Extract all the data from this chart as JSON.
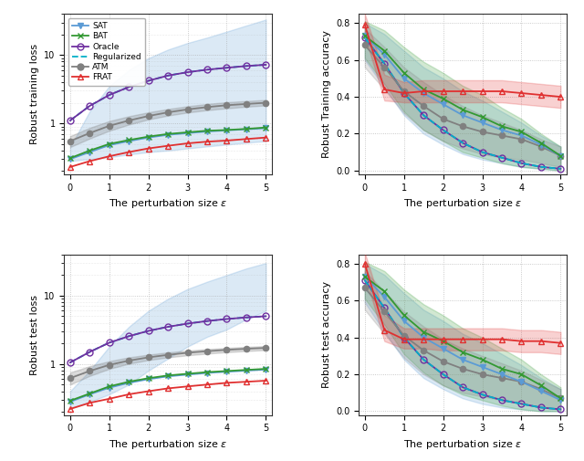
{
  "x_dense": [
    0,
    0.5,
    1.0,
    1.5,
    2.0,
    2.5,
    3.0,
    3.5,
    4.0,
    4.5,
    5.0
  ],
  "colors": {
    "SAT": "#5B9BD5",
    "BAT": "#339933",
    "Oracle": "#7030A0",
    "Regularized": "#00B0C8",
    "ATM": "#808080",
    "FRAT": "#E03030"
  },
  "train_loss": {
    "SAT": [
      0.3,
      0.38,
      0.48,
      0.55,
      0.62,
      0.68,
      0.72,
      0.76,
      0.79,
      0.82,
      0.85
    ],
    "BAT": [
      0.31,
      0.4,
      0.5,
      0.57,
      0.64,
      0.7,
      0.74,
      0.78,
      0.8,
      0.83,
      0.87
    ],
    "Oracle": [
      1.1,
      1.8,
      2.6,
      3.4,
      4.2,
      5.0,
      5.6,
      6.1,
      6.5,
      6.9,
      7.2
    ],
    "Regularized": [
      1.1,
      1.8,
      2.6,
      3.4,
      4.2,
      5.0,
      5.6,
      6.1,
      6.5,
      6.9,
      7.2
    ],
    "ATM": [
      0.55,
      0.72,
      0.92,
      1.1,
      1.28,
      1.45,
      1.6,
      1.73,
      1.84,
      1.92,
      2.0
    ],
    "FRAT": [
      0.23,
      0.28,
      0.33,
      0.38,
      0.43,
      0.47,
      0.51,
      0.54,
      0.56,
      0.59,
      0.62
    ]
  },
  "train_loss_lo": [
    0.28,
    0.3,
    0.32,
    0.35,
    0.38,
    0.4,
    0.43,
    0.46,
    0.49,
    0.52,
    0.55
  ],
  "train_loss_hi": [
    0.45,
    1.5,
    3.5,
    6.0,
    9.0,
    12.0,
    15.0,
    18.0,
    22.0,
    27.0,
    33.0
  ],
  "train_loss_atm_lo": [
    0.45,
    0.6,
    0.78,
    0.96,
    1.14,
    1.3,
    1.44,
    1.56,
    1.66,
    1.75,
    1.83
  ],
  "train_loss_atm_hi": [
    0.65,
    0.86,
    1.08,
    1.27,
    1.45,
    1.62,
    1.78,
    1.92,
    2.04,
    2.12,
    2.2
  ],
  "test_loss": {
    "SAT": [
      0.28,
      0.36,
      0.45,
      0.53,
      0.6,
      0.66,
      0.7,
      0.74,
      0.77,
      0.8,
      0.83
    ],
    "BAT": [
      0.29,
      0.37,
      0.47,
      0.55,
      0.62,
      0.68,
      0.72,
      0.76,
      0.79,
      0.82,
      0.85
    ],
    "Oracle": [
      1.05,
      1.5,
      2.05,
      2.55,
      3.05,
      3.5,
      3.9,
      4.25,
      4.55,
      4.8,
      5.0
    ],
    "Regularized": [
      1.05,
      1.5,
      2.05,
      2.55,
      3.05,
      3.5,
      3.9,
      4.25,
      4.55,
      4.8,
      5.0
    ],
    "ATM": [
      0.62,
      0.79,
      0.97,
      1.12,
      1.25,
      1.36,
      1.46,
      1.54,
      1.61,
      1.67,
      1.72
    ],
    "FRAT": [
      0.22,
      0.27,
      0.31,
      0.36,
      0.4,
      0.44,
      0.47,
      0.5,
      0.53,
      0.55,
      0.57
    ]
  },
  "test_loss_lo": [
    0.22,
    0.28,
    0.36,
    0.5,
    0.8,
    1.2,
    1.8,
    2.5,
    3.2,
    4.5,
    6.0
  ],
  "test_loss_hi": [
    0.4,
    0.8,
    1.8,
    3.5,
    6.0,
    9.0,
    12.5,
    16.0,
    20.0,
    25.0,
    30.0
  ],
  "test_loss_atm_lo": [
    0.5,
    0.67,
    0.85,
    1.01,
    1.14,
    1.25,
    1.34,
    1.42,
    1.49,
    1.55,
    1.6
  ],
  "test_loss_atm_hi": [
    0.75,
    0.93,
    1.1,
    1.25,
    1.37,
    1.48,
    1.57,
    1.65,
    1.72,
    1.78,
    1.83
  ],
  "train_acc": {
    "SAT": [
      0.73,
      0.63,
      0.5,
      0.42,
      0.36,
      0.3,
      0.26,
      0.22,
      0.19,
      0.14,
      0.08
    ],
    "BAT": [
      0.73,
      0.65,
      0.53,
      0.44,
      0.39,
      0.33,
      0.29,
      0.24,
      0.21,
      0.15,
      0.08
    ],
    "Oracle": [
      0.72,
      0.58,
      0.42,
      0.3,
      0.22,
      0.15,
      0.1,
      0.07,
      0.04,
      0.02,
      0.01
    ],
    "Regularized": [
      0.72,
      0.58,
      0.42,
      0.3,
      0.22,
      0.15,
      0.1,
      0.07,
      0.04,
      0.02,
      0.01
    ],
    "ATM": [
      0.68,
      0.56,
      0.43,
      0.35,
      0.28,
      0.24,
      0.21,
      0.19,
      0.17,
      0.13,
      0.08
    ],
    "FRAT": [
      0.79,
      0.44,
      0.42,
      0.43,
      0.43,
      0.43,
      0.43,
      0.43,
      0.42,
      0.41,
      0.4
    ]
  },
  "train_acc_sat_lo": [
    0.6,
    0.45,
    0.3,
    0.2,
    0.14,
    0.09,
    0.06,
    0.04,
    0.02,
    0.01,
    0.0
  ],
  "train_acc_sat_hi": [
    0.8,
    0.74,
    0.65,
    0.56,
    0.5,
    0.43,
    0.38,
    0.32,
    0.26,
    0.19,
    0.13
  ],
  "train_acc_bat_lo": [
    0.61,
    0.47,
    0.32,
    0.22,
    0.16,
    0.1,
    0.07,
    0.04,
    0.02,
    0.01,
    0.0
  ],
  "train_acc_bat_hi": [
    0.81,
    0.76,
    0.67,
    0.59,
    0.53,
    0.46,
    0.41,
    0.34,
    0.28,
    0.2,
    0.13
  ],
  "train_acc_atm_lo": [
    0.56,
    0.44,
    0.31,
    0.22,
    0.16,
    0.12,
    0.09,
    0.07,
    0.06,
    0.04,
    0.02
  ],
  "train_acc_atm_hi": [
    0.77,
    0.67,
    0.56,
    0.48,
    0.41,
    0.35,
    0.3,
    0.26,
    0.22,
    0.17,
    0.13
  ],
  "train_acc_frat_lo": [
    0.73,
    0.38,
    0.37,
    0.37,
    0.37,
    0.37,
    0.37,
    0.37,
    0.36,
    0.35,
    0.34
  ],
  "train_acc_frat_hi": [
    0.85,
    0.52,
    0.48,
    0.49,
    0.49,
    0.49,
    0.49,
    0.49,
    0.48,
    0.47,
    0.46
  ],
  "test_acc": {
    "SAT": [
      0.73,
      0.62,
      0.49,
      0.4,
      0.34,
      0.28,
      0.24,
      0.2,
      0.16,
      0.11,
      0.06
    ],
    "BAT": [
      0.73,
      0.65,
      0.52,
      0.43,
      0.38,
      0.32,
      0.28,
      0.23,
      0.2,
      0.14,
      0.07
    ],
    "Oracle": [
      0.71,
      0.56,
      0.4,
      0.28,
      0.2,
      0.13,
      0.09,
      0.06,
      0.04,
      0.02,
      0.01
    ],
    "Regularized": [
      0.71,
      0.56,
      0.4,
      0.28,
      0.2,
      0.13,
      0.09,
      0.06,
      0.04,
      0.02,
      0.01
    ],
    "ATM": [
      0.67,
      0.54,
      0.41,
      0.33,
      0.27,
      0.23,
      0.2,
      0.18,
      0.16,
      0.12,
      0.07
    ],
    "FRAT": [
      0.8,
      0.44,
      0.39,
      0.39,
      0.39,
      0.39,
      0.39,
      0.39,
      0.38,
      0.38,
      0.37
    ]
  },
  "test_acc_sat_lo": [
    0.59,
    0.43,
    0.28,
    0.18,
    0.12,
    0.07,
    0.04,
    0.02,
    0.01,
    0.0,
    0.0
  ],
  "test_acc_sat_hi": [
    0.8,
    0.74,
    0.64,
    0.55,
    0.49,
    0.42,
    0.37,
    0.31,
    0.25,
    0.18,
    0.12
  ],
  "test_acc_bat_lo": [
    0.61,
    0.47,
    0.31,
    0.21,
    0.14,
    0.09,
    0.06,
    0.03,
    0.01,
    0.0,
    0.0
  ],
  "test_acc_bat_hi": [
    0.81,
    0.76,
    0.66,
    0.58,
    0.52,
    0.45,
    0.4,
    0.34,
    0.28,
    0.2,
    0.13
  ],
  "test_acc_atm_lo": [
    0.55,
    0.42,
    0.29,
    0.2,
    0.14,
    0.1,
    0.08,
    0.06,
    0.04,
    0.02,
    0.01
  ],
  "test_acc_atm_hi": [
    0.76,
    0.65,
    0.54,
    0.46,
    0.39,
    0.34,
    0.3,
    0.26,
    0.22,
    0.17,
    0.12
  ],
  "test_acc_frat_lo": [
    0.74,
    0.38,
    0.34,
    0.34,
    0.33,
    0.33,
    0.33,
    0.33,
    0.32,
    0.32,
    0.31
  ],
  "test_acc_frat_hi": [
    0.86,
    0.52,
    0.45,
    0.45,
    0.45,
    0.45,
    0.45,
    0.45,
    0.44,
    0.44,
    0.43
  ]
}
